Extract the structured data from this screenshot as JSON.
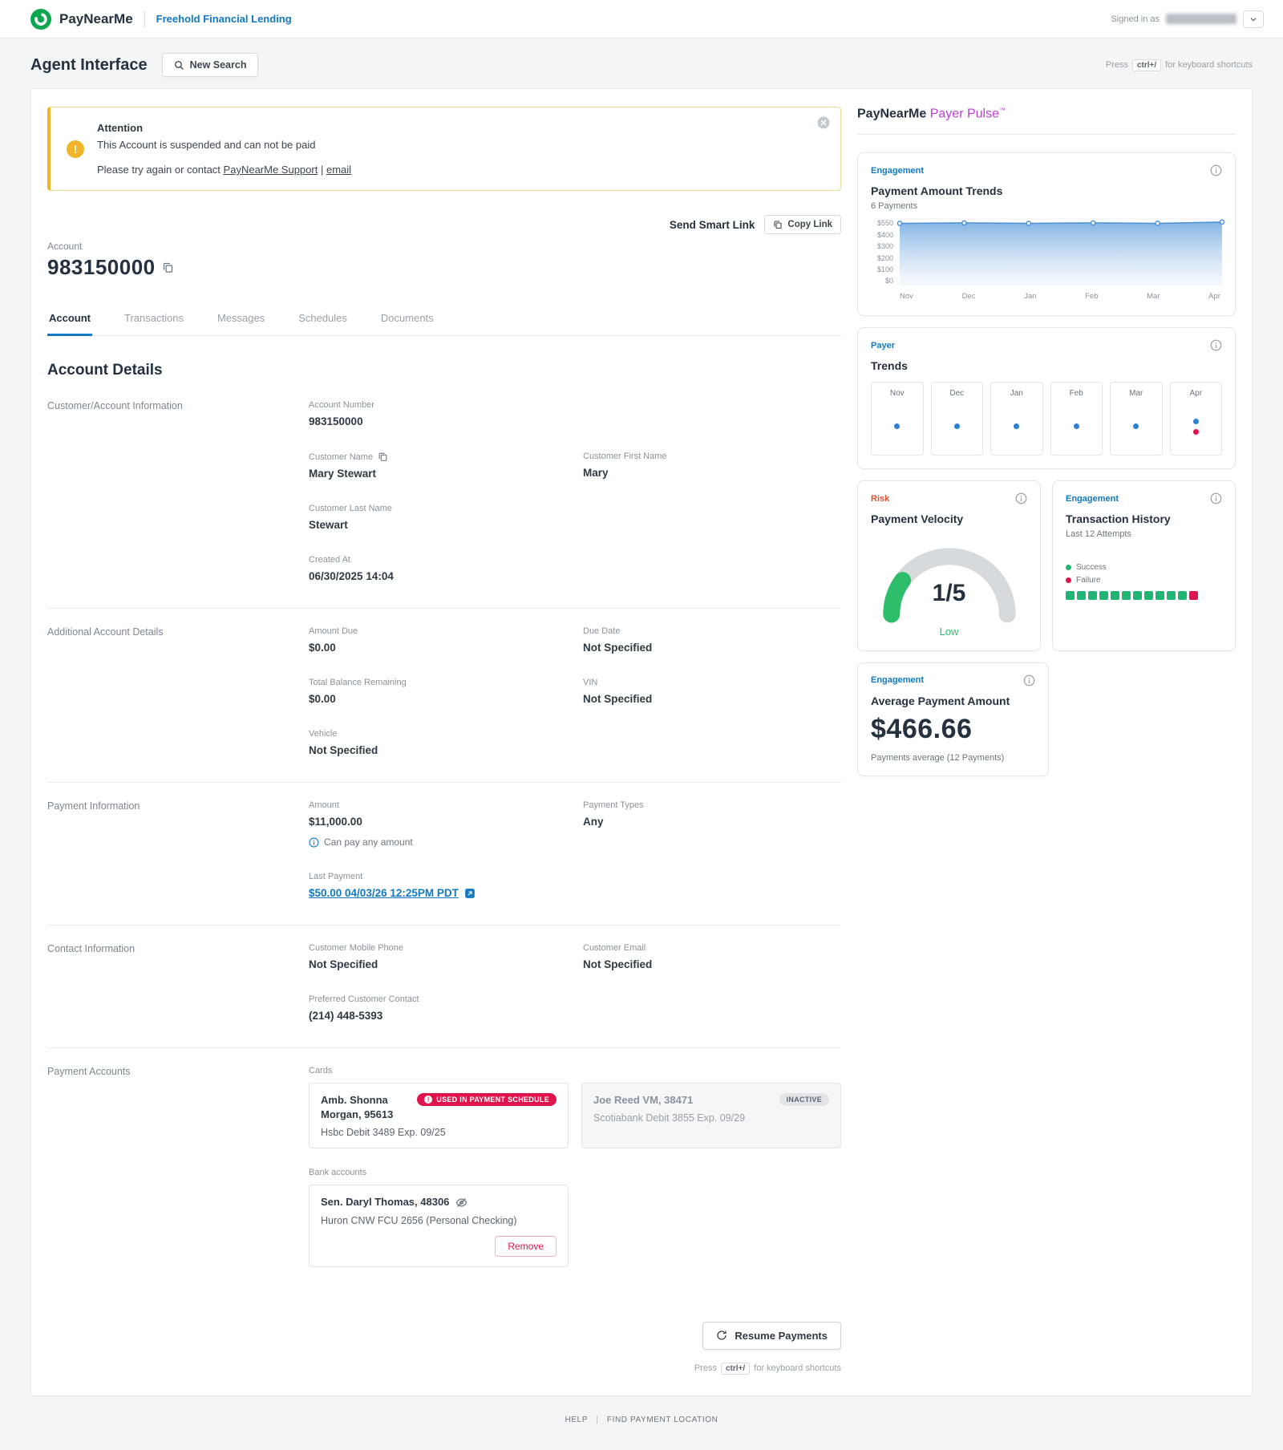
{
  "topbar": {
    "brand": "PayNearMe",
    "org": "Freehold Financial Lending",
    "signed_in": "Signed in as"
  },
  "page": {
    "title": "Agent Interface",
    "new_search": "New Search",
    "press": "Press",
    "shortcut_key": "ctrl+/",
    "shortcut_text": "for keyboard shortcuts"
  },
  "banner": {
    "title": "Attention",
    "message": "This Account is suspended and can not be paid",
    "retry_prefix": "Please try again or contact",
    "support_link": "PayNearMe Support",
    "divider": "|",
    "email_link": "email"
  },
  "smart_link": {
    "send_label": "Send Smart Link",
    "copy_label": "Copy Link"
  },
  "account": {
    "label": "Account",
    "number": "983150000"
  },
  "tabs": {
    "account": "Account",
    "transactions": "Transactions",
    "messages": "Messages",
    "schedules": "Schedules",
    "documents": "Documents"
  },
  "details": {
    "heading": "Account Details",
    "customer_section": {
      "label": "Customer/Account Information",
      "account_number": {
        "label": "Account Number",
        "value": "983150000"
      },
      "customer_name": {
        "label": "Customer Name",
        "value": "Mary Stewart"
      },
      "first_name": {
        "label": "Customer First Name",
        "value": "Mary"
      },
      "last_name": {
        "label": "Customer Last Name",
        "value": "Stewart"
      },
      "created_at": {
        "label": "Created At",
        "value": "06/30/2025 14:04"
      }
    },
    "additional_section": {
      "label": "Additional Account Details",
      "amount_due": {
        "label": "Amount Due",
        "value": "$0.00"
      },
      "due_date": {
        "label": "Due Date",
        "value": "Not Specified"
      },
      "total_balance": {
        "label": "Total Balance Remaining",
        "value": "$0.00"
      },
      "vin": {
        "label": "VIN",
        "value": "Not Specified"
      },
      "vehicle": {
        "label": "Vehicle",
        "value": "Not Specified"
      }
    },
    "payment_section": {
      "label": "Payment Information",
      "amount": {
        "label": "Amount",
        "value": "$11,000.00",
        "note": "Can pay any amount"
      },
      "payment_types": {
        "label": "Payment Types",
        "value": "Any"
      },
      "last_payment": {
        "label": "Last Payment",
        "value": "$50.00 04/03/26 12:25PM PDT"
      }
    },
    "contact_section": {
      "label": "Contact Information",
      "mobile": {
        "label": "Customer Mobile Phone",
        "value": "Not Specified"
      },
      "email": {
        "label": "Customer Email",
        "value": "Not Specified"
      },
      "preferred": {
        "label": "Preferred Customer Contact",
        "value": "(214) 448-5393"
      }
    }
  },
  "payment_accounts": {
    "label": "Payment Accounts",
    "cards_label": "Cards",
    "cards": [
      {
        "name": "Amb. Shonna Morgan, 95613",
        "badge": "USED IN PAYMENT SCHEDULE",
        "detail": "Hsbc Debit 3489 Exp. 09/25"
      },
      {
        "name": "Joe Reed VM, 38471",
        "badge": "INACTIVE",
        "detail": "Scotiabank Debit 3855 Exp. 09/29"
      }
    ],
    "banks_label": "Bank accounts",
    "banks": [
      {
        "name": "Sen. Daryl Thomas, 48306",
        "detail": "Huron CNW FCU 2656 (Personal Checking)",
        "remove_label": "Remove"
      }
    ]
  },
  "actions": {
    "resume_payments": "Resume Payments"
  },
  "pulse": {
    "brand": "PayNearMe",
    "product": "Payer Pulse",
    "tm": "™",
    "trends_card": {
      "category": "Engagement",
      "title": "Payment Amount Trends",
      "subtitle": "6 Payments"
    },
    "payer_card": {
      "category": "Payer",
      "title": "Trends"
    },
    "velocity_card": {
      "category": "Risk",
      "title": "Payment Velocity",
      "score": "1/5",
      "level": "Low"
    },
    "history_card": {
      "category": "Engagement",
      "title": "Transaction History",
      "subtitle": "Last 12 Attempts",
      "success_label": "Success",
      "failure_label": "Failure"
    },
    "average_card": {
      "category": "Engagement",
      "title": "Average Payment Amount",
      "amount": "$466.66",
      "subtitle": "Payments average (12 Payments)"
    }
  },
  "chart_data": [
    {
      "type": "area",
      "title": "Payment Amount Trends",
      "x": [
        "Nov",
        "Dec",
        "Jan",
        "Feb",
        "Mar",
        "Apr"
      ],
      "values": [
        500,
        505,
        500,
        505,
        500,
        515
      ],
      "ytick_labels": [
        "$550",
        "$400",
        "$300",
        "$200",
        "$100",
        "$0"
      ],
      "ytick_values": [
        550,
        400,
        300,
        200,
        100,
        0
      ],
      "ylim": [
        0,
        550
      ],
      "grid": true,
      "legend": "none",
      "line_color": "#4a90d9",
      "fill_top": "#6ea7e0",
      "fill_bottom": "#eef5fc"
    },
    {
      "type": "scatter",
      "title": "Payer Trends",
      "months": [
        {
          "label": "Nov",
          "dots": [
            "blue"
          ]
        },
        {
          "label": "Dec",
          "dots": [
            "blue"
          ]
        },
        {
          "label": "Jan",
          "dots": [
            "blue"
          ]
        },
        {
          "label": "Feb",
          "dots": [
            "blue"
          ]
        },
        {
          "label": "Mar",
          "dots": [
            "blue"
          ]
        },
        {
          "label": "Apr",
          "dots": [
            "blue",
            "red"
          ]
        }
      ]
    },
    {
      "type": "gauge",
      "title": "Payment Velocity",
      "value": 1,
      "max": 5,
      "label": "Low"
    },
    {
      "type": "sequence",
      "title": "Transaction History",
      "attempts": [
        "success",
        "success",
        "success",
        "success",
        "success",
        "success",
        "success",
        "success",
        "success",
        "success",
        "success",
        "failure"
      ]
    }
  ],
  "footer": {
    "help": "HELP",
    "divider": "|",
    "find_location": "FIND PAYMENT LOCATION"
  },
  "colors": {
    "accent_blue": "#1279c2",
    "pulse_purple": "#bb3fd3",
    "warning": "#f0b429",
    "danger": "#e0144c",
    "success": "#21b573",
    "brand_green": "#0ba750"
  }
}
